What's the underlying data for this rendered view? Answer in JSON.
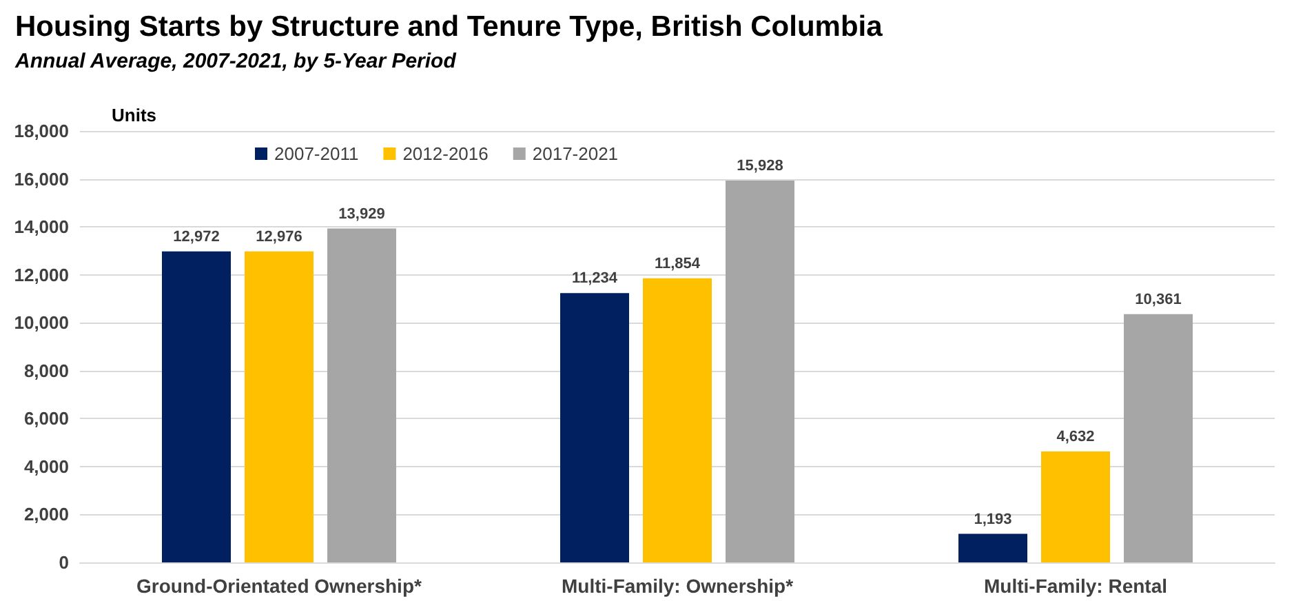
{
  "chart_data": {
    "type": "bar",
    "title": "Housing Starts by Structure and Tenure Type, British Columbia",
    "subtitle": "Annual Average, 2007-2021, by 5-Year Period",
    "ylabel": "Units",
    "categories": [
      "Ground-Orientated Ownership*",
      "Multi-Family: Ownership*",
      "Multi-Family: Rental"
    ],
    "series": [
      {
        "name": "2007-2011",
        "color": "#002060",
        "values": [
          12972,
          11234,
          1193
        ],
        "value_labels": [
          "12,972",
          "11,234",
          "1,193"
        ]
      },
      {
        "name": "2012-2016",
        "color": "#ffc000",
        "values": [
          12976,
          11854,
          4632
        ],
        "value_labels": [
          "12,976",
          "11,854",
          "4,632"
        ]
      },
      {
        "name": "2017-2021",
        "color": "#a6a6a6",
        "values": [
          13929,
          15928,
          10361
        ],
        "value_labels": [
          "13,929",
          "15,928",
          "10,361"
        ]
      }
    ],
    "ylim": [
      0,
      18000
    ],
    "yticks": [
      0,
      {
        "value": 2000,
        "label": "2,000"
      },
      {
        "value": 4000,
        "label": "4,000"
      },
      {
        "value": 6000,
        "label": "6,000"
      },
      {
        "value": 8000,
        "label": "8,000"
      },
      {
        "value": 10000,
        "label": "10,000"
      },
      {
        "value": 12000,
        "label": "12,000"
      },
      {
        "value": 14000,
        "label": "14,000"
      },
      {
        "value": 16000,
        "label": "16,000"
      },
      {
        "value": 18000,
        "label": "18,000"
      }
    ],
    "grid": "y",
    "legend": "top"
  }
}
